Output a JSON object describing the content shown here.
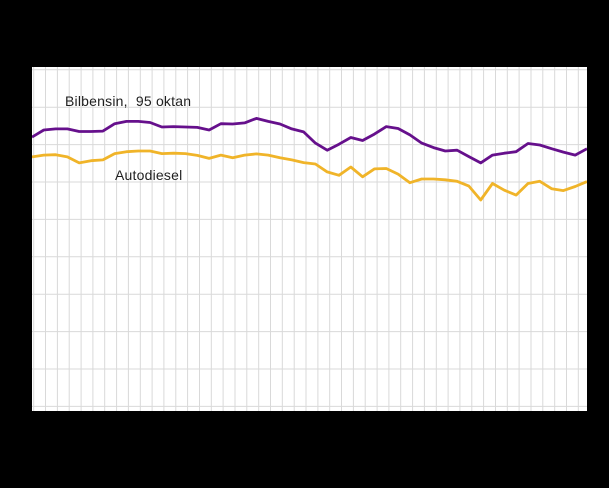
{
  "window": {
    "background_color": "#000000"
  },
  "chart_data": {
    "type": "line",
    "title": "",
    "plot_background": "#ffffff",
    "gridline_color": "#d9d9d9",
    "x_axis": {
      "tick_labels_visible": false,
      "gridlines": 47,
      "num_points": 48
    },
    "y_axis": {
      "tick_labels_visible": false,
      "gridlines": 10,
      "unit": "gridline intervals above bottom gridline",
      "ylim": [
        0,
        9.2
      ]
    },
    "legend_position": "inline-labels",
    "series": [
      {
        "name": "Bilbensin, 95 oktan",
        "color": "#66108c",
        "values": [
          7.2,
          7.39,
          7.42,
          7.42,
          7.35,
          7.35,
          7.36,
          7.56,
          7.62,
          7.62,
          7.59,
          7.47,
          7.48,
          7.47,
          7.46,
          7.39,
          7.56,
          7.55,
          7.58,
          7.7,
          7.62,
          7.55,
          7.42,
          7.34,
          7.04,
          6.85,
          7.01,
          7.19,
          7.11,
          7.28,
          7.48,
          7.43,
          7.26,
          7.04,
          6.92,
          6.83,
          6.85,
          6.68,
          6.51,
          6.72,
          6.77,
          6.81,
          7.03,
          6.99,
          6.89,
          6.8,
          6.72,
          6.89
        ]
      },
      {
        "name": "Autodiesel",
        "color": "#f0b429",
        "values": [
          6.67,
          6.72,
          6.73,
          6.67,
          6.51,
          6.57,
          6.59,
          6.76,
          6.81,
          6.83,
          6.83,
          6.76,
          6.77,
          6.76,
          6.71,
          6.63,
          6.72,
          6.65,
          6.72,
          6.75,
          6.72,
          6.65,
          6.59,
          6.52,
          6.48,
          6.27,
          6.18,
          6.4,
          6.14,
          6.35,
          6.36,
          6.21,
          5.98,
          6.08,
          6.08,
          6.06,
          6.02,
          5.89,
          5.52,
          5.96,
          5.78,
          5.65,
          5.96,
          6.02,
          5.82,
          5.77,
          5.88,
          6.01
        ]
      }
    ],
    "annotations": [
      {
        "text": "Bilbensin,  95 oktan",
        "series": "Bilbensin, 95 oktan",
        "color": "#1f1f1f"
      },
      {
        "text": "Autodiesel",
        "series": "Autodiesel",
        "color": "#1f1f1f"
      }
    ]
  }
}
